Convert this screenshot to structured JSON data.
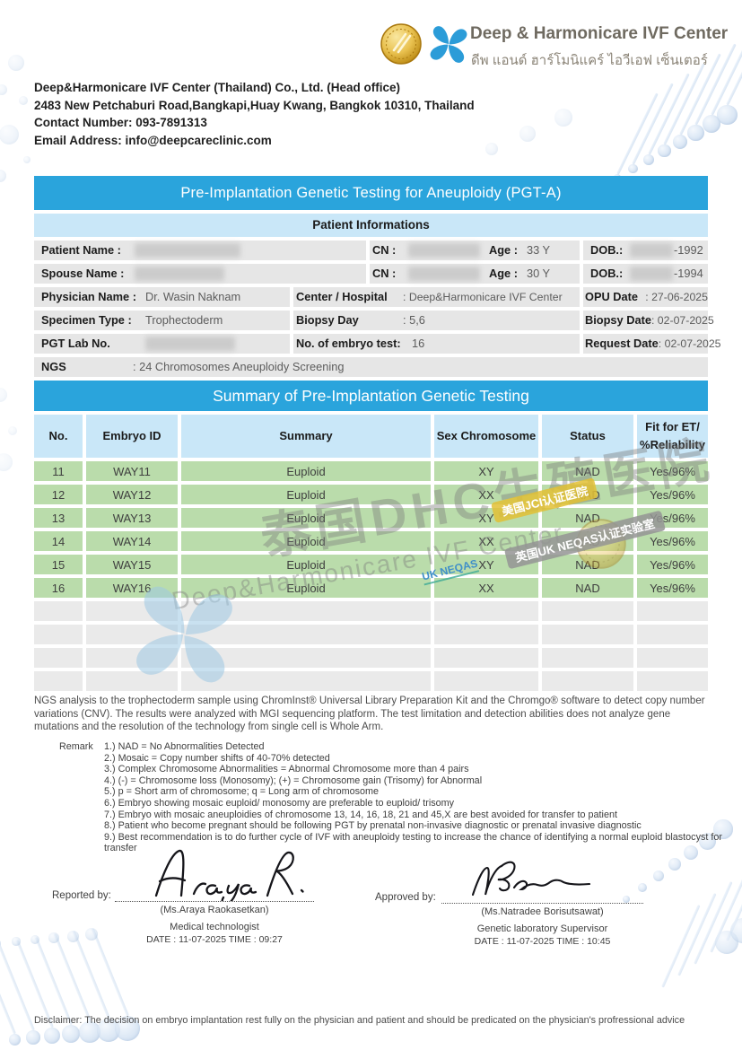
{
  "brand": {
    "name": "Deep & Harmonicare IVF Center",
    "name_thai": "ดีพ แอนด์ ฮาร์โมนิแคร์ ไอวีเอฟ เซ็นเตอร์",
    "company": "Deep&Harmonicare IVF Center (Thailand) Co., Ltd. (Head office)",
    "address": "2483 New Petchaburi Road,Bangkapi,Huay Kwang, Bangkok 10310, Thailand",
    "contact": "Contact Number: 093-7891313",
    "email": "Email Address: info@deepcareclinic.com"
  },
  "report": {
    "title": "Pre-Implantation Genetic Testing for Aneuploidy (PGT-A)",
    "patient_section_title": "Patient Informations",
    "summary_title": "Summary of Pre-Implantation Genetic Testing"
  },
  "patient_info": {
    "row1": {
      "label": "Patient Name :",
      "cn_label": "CN :",
      "age_label": "Age :",
      "age_value": "33 Y",
      "dob_label": "DOB.:",
      "dob_value": "-1992"
    },
    "row2": {
      "label": "Spouse Name :",
      "cn_label": "CN :",
      "age_label": "Age :",
      "age_value": "30 Y",
      "dob_label": "DOB.:",
      "dob_value": "-1994"
    },
    "row3": {
      "label": "Physician Name :",
      "value": "Dr. Wasin Naknam",
      "c2_label": "Center / Hospital",
      "c2_value": ": Deep&Harmonicare IVF Center",
      "c3_label": "OPU Date",
      "c3_value": ": 27-06-2025"
    },
    "row4": {
      "label": "Specimen Type :",
      "value": "Trophectoderm",
      "c2_label": "Biopsy Day",
      "c2_value": ": 5,6",
      "c3_label": "Biopsy Date",
      "c3_value": ": 02-07-2025"
    },
    "row5": {
      "label": "PGT Lab No.",
      "c2_label": "No. of embryo test:",
      "c2_value": "16",
      "c3_label": "Request Date",
      "c3_value": ": 02-07-2025"
    },
    "row6": {
      "label": "NGS",
      "value": ": 24 Chromosomes Aneuploidy Screening"
    }
  },
  "table": {
    "headers": [
      "No.",
      "Embryo ID",
      "Summary",
      "Sex Chromosome",
      "Status"
    ],
    "fit_header": {
      "line1": "Fit for ET/",
      "line2": "%Reliability"
    },
    "rows": [
      {
        "no": "11",
        "embryo_id": "WAY11",
        "summary": "Euploid",
        "sex": "XY",
        "status": "NAD",
        "fit": "Yes/96%"
      },
      {
        "no": "12",
        "embryo_id": "WAY12",
        "summary": "Euploid",
        "sex": "XX",
        "status": "NAD",
        "fit": "Yes/96%"
      },
      {
        "no": "13",
        "embryo_id": "WAY13",
        "summary": "Euploid",
        "sex": "XY",
        "status": "NAD",
        "fit": "Yes/96%"
      },
      {
        "no": "14",
        "embryo_id": "WAY14",
        "summary": "Euploid",
        "sex": "XX",
        "status": "NAD",
        "fit": "Yes/96%"
      },
      {
        "no": "15",
        "embryo_id": "WAY15",
        "summary": "Euploid",
        "sex": "XY",
        "status": "NAD",
        "fit": "Yes/96%"
      },
      {
        "no": "16",
        "embryo_id": "WAY16",
        "summary": "Euploid",
        "sex": "XX",
        "status": "NAD",
        "fit": "Yes/96%"
      }
    ],
    "empty_row_count": 4
  },
  "watermarks": {
    "cn_line": "泰国DHC生殖医院",
    "en_line": "Deep&Harmonicare IVF Center",
    "jci_badge": "美国JCI认证医院",
    "neqas_badge": "英国UK NEQAS认证实验室",
    "uk_neqas": "UK NEQAS"
  },
  "ngs_note": "NGS analysis to the trophectoderm sample using ChromInst® Universal Library Preparation Kit and the Chromgo® software to detect copy number variations (CNV). The results were analyzed with MGI sequencing platform. The test limitation and detection abilities does not analyze gene mutations and the resolution of the technology from single cell is Whole Arm.",
  "remark": {
    "label": "Remark",
    "items": [
      "1.) NAD = No Abnormalities Detected",
      "2.) Mosaic = Copy number shifts of 40-70% detected",
      "3.) Complex Chromosome Abnormalities = Abnormal Chromosome more than 4 pairs",
      "4.) (-) = Chromosome loss (Monosomy); (+) = Chromosome gain (Trisomy) for Abnormal",
      "5.) p = Short arm of chromosome; q = Long arm of chromosome",
      "6.) Embryo showing mosaic euploid/ monosomy are preferable to euploid/ trisomy",
      "7.) Embryo with mosaic aneuploidies of chromosome 13, 14, 16, 18, 21 and 45,X are best avoided for transfer to patient",
      "8.) Patient who become pregnant should be following PGT by prenatal non-invasive diagnostic or prenatal invasive diagnostic",
      "9.) Best recommendation is to do further cycle of IVF with aneuploidy testing to increase the chance of identifying a normal euploid blastocyst for transfer"
    ]
  },
  "signatures": {
    "reported": {
      "label": "Reported by:",
      "name": "(Ms.Araya Raokasetkan)",
      "role": "Medical technologist",
      "datetime": "DATE : 11-07-2025 TIME : 09:27"
    },
    "approved": {
      "label": "Approved by:",
      "name": "(Ms.Natradee Borisutsawat)",
      "role": "Genetic laboratory Supervisor",
      "datetime": "DATE : 11-07-2025 TIME : 10:45"
    }
  },
  "disclaimer": "Disclaimer: The decision on embryo implantation rest fully on the physician and patient and should be predicated on the physician's profressional advice",
  "colors": {
    "accent_blue": "#2AA4DC",
    "light_blue": "#C9E7F8",
    "row_green": "#BADCAB",
    "row_gray": "#E6E6E6",
    "empty_gray": "#EAEAEA"
  }
}
